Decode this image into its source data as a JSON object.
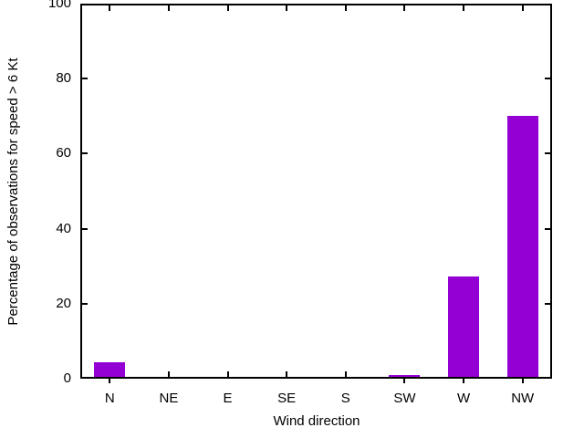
{
  "window": {
    "background": "#ffffff"
  },
  "chart_data": {
    "type": "bar",
    "title": "",
    "xlabel": "Wind direction",
    "ylabel": "Percentage of observations for speed > 6 Kt",
    "categories": [
      "N",
      "NE",
      "E",
      "SE",
      "S",
      "SW",
      "W",
      "NW"
    ],
    "values": [
      3.8,
      0,
      0,
      0,
      0,
      0.5,
      26.8,
      69.5
    ],
    "ylim": [
      0,
      100
    ],
    "yticks": [
      0,
      20,
      40,
      60,
      80,
      100
    ],
    "bar_color": "#9400d3",
    "axis_color": "#000000",
    "grid": false,
    "legend": null
  }
}
